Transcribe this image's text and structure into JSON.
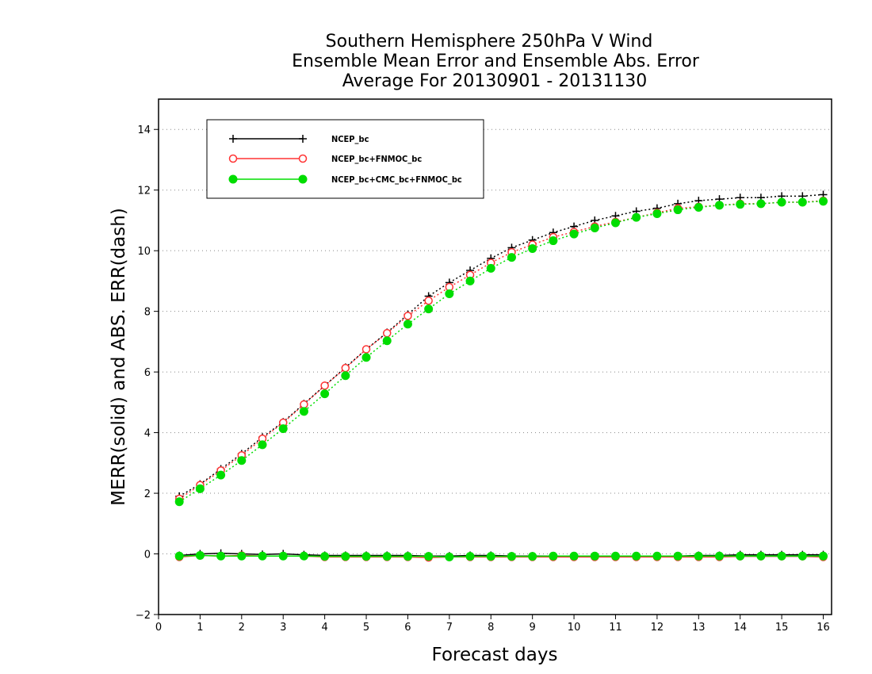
{
  "chart_data": {
    "type": "line",
    "title": [
      "Southern Hemisphere 250hPa V Wind",
      "Ensemble Mean Error and Ensemble Abs. Error",
      "Average For 20130901 - 20131130"
    ],
    "xlabel": "Forecast days",
    "ylabel": "MERR(solid) and ABS. ERR(dash)",
    "xlim": [
      0,
      16.2
    ],
    "ylim": [
      -2,
      15
    ],
    "xticks": [
      0,
      1,
      2,
      3,
      4,
      5,
      6,
      7,
      8,
      9,
      10,
      11,
      12,
      13,
      14,
      15,
      16
    ],
    "yticks": [
      -2,
      0,
      2,
      4,
      6,
      8,
      10,
      12,
      14
    ],
    "grid": "horizontal dotted",
    "legend_position": "top-left",
    "x": [
      0.5,
      1,
      1.5,
      2,
      2.5,
      3,
      3.5,
      4,
      4.5,
      5,
      5.5,
      6,
      6.5,
      7,
      7.5,
      8,
      8.5,
      9,
      9.5,
      10,
      10.5,
      11,
      11.5,
      12,
      12.5,
      13,
      13.5,
      14,
      14.5,
      15,
      15.5,
      16
    ],
    "series": [
      {
        "name": "NCEP_bc",
        "color": "#000000",
        "marker": "plus",
        "abs_err": [
          1.9,
          2.3,
          2.8,
          3.3,
          3.85,
          4.35,
          4.95,
          5.55,
          6.15,
          6.75,
          7.3,
          7.9,
          8.5,
          8.95,
          9.35,
          9.75,
          10.1,
          10.35,
          10.6,
          10.8,
          11.0,
          11.15,
          11.3,
          11.4,
          11.55,
          11.65,
          11.7,
          11.75,
          11.75,
          11.8,
          11.8,
          11.85
        ],
        "mean_err": [
          -0.05,
          0.0,
          0.02,
          0.0,
          -0.02,
          0.0,
          -0.03,
          -0.05,
          -0.05,
          -0.05,
          -0.05,
          -0.05,
          -0.07,
          -0.07,
          -0.05,
          -0.05,
          -0.07,
          -0.07,
          -0.07,
          -0.07,
          -0.07,
          -0.07,
          -0.07,
          -0.07,
          -0.07,
          -0.05,
          -0.05,
          -0.03,
          -0.03,
          -0.03,
          -0.03,
          -0.03
        ]
      },
      {
        "name": "NCEP_bc+FNMOC_bc",
        "color": "#ff3333",
        "marker": "open-circle",
        "abs_err": [
          1.82,
          2.27,
          2.75,
          3.25,
          3.8,
          4.33,
          4.93,
          5.55,
          6.13,
          6.75,
          7.28,
          7.85,
          8.35,
          8.8,
          9.2,
          9.6,
          9.95,
          10.2,
          10.45,
          10.62,
          10.8,
          10.95,
          11.1,
          11.25,
          11.4,
          11.45,
          11.5,
          11.55,
          11.55,
          11.6,
          11.6,
          11.65
        ],
        "mean_err": [
          -0.1,
          -0.05,
          -0.07,
          -0.05,
          -0.07,
          -0.07,
          -0.07,
          -0.1,
          -0.1,
          -0.1,
          -0.1,
          -0.1,
          -0.12,
          -0.1,
          -0.1,
          -0.1,
          -0.1,
          -0.1,
          -0.1,
          -0.1,
          -0.1,
          -0.1,
          -0.1,
          -0.1,
          -0.1,
          -0.1,
          -0.1,
          -0.08,
          -0.08,
          -0.08,
          -0.08,
          -0.1
        ]
      },
      {
        "name": "NCEP_bc+CMC_bc+FNMOC_bc",
        "color": "#00dd00",
        "marker": "filled-circle",
        "abs_err": [
          1.72,
          2.15,
          2.6,
          3.08,
          3.6,
          4.13,
          4.7,
          5.28,
          5.88,
          6.48,
          7.03,
          7.58,
          8.08,
          8.58,
          9.0,
          9.42,
          9.78,
          10.07,
          10.33,
          10.55,
          10.75,
          10.92,
          11.1,
          11.22,
          11.35,
          11.43,
          11.5,
          11.53,
          11.55,
          11.6,
          11.6,
          11.63
        ],
        "mean_err": [
          -0.07,
          -0.05,
          -0.07,
          -0.07,
          -0.07,
          -0.07,
          -0.07,
          -0.08,
          -0.08,
          -0.08,
          -0.08,
          -0.08,
          -0.08,
          -0.1,
          -0.08,
          -0.08,
          -0.08,
          -0.08,
          -0.07,
          -0.07,
          -0.07,
          -0.07,
          -0.07,
          -0.07,
          -0.07,
          -0.07,
          -0.07,
          -0.07,
          -0.07,
          -0.07,
          -0.07,
          -0.07
        ]
      }
    ]
  }
}
